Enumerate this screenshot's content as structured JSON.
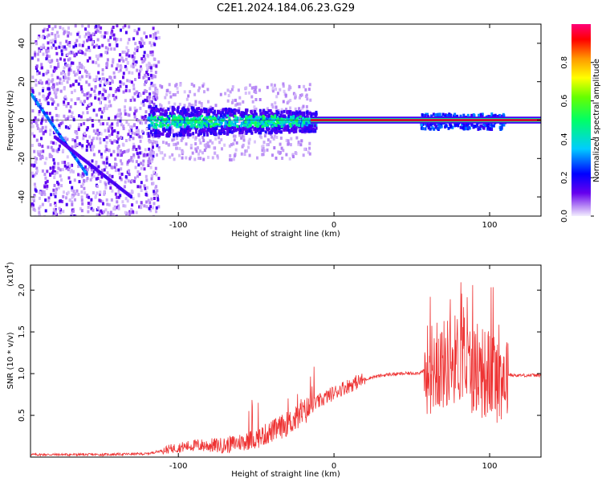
{
  "title": "C2E1.2024.184.06.23.G29",
  "colors": {
    "snr_line": "#ee3333",
    "axis": "#000000"
  },
  "colorbar": {
    "label": "Normalized spectral amplitude",
    "ticks": [
      "0.0",
      "0.2",
      "0.4",
      "0.6",
      "0.8"
    ],
    "tick_values": [
      0.0,
      0.2,
      0.4,
      0.6,
      0.8
    ],
    "range": [
      0,
      1
    ]
  },
  "chart_data": [
    {
      "type": "heatmap",
      "title": "",
      "xlabel": "Height of straight line (km)",
      "ylabel": "Frequency (Hz)",
      "xlim": [
        -195,
        133
      ],
      "ylim": [
        -50,
        50
      ],
      "x_ticks": [
        -100,
        0,
        100
      ],
      "x_tick_labels": [
        "-100",
        "0",
        "100"
      ],
      "y_ticks": [
        -40,
        -20,
        0,
        20,
        40
      ],
      "y_tick_labels": [
        "-40",
        "-20",
        "0",
        "20",
        "40"
      ],
      "regions": [
        {
          "x": [
            -195,
            -115
          ],
          "freq_spread": [
            -50,
            50
          ],
          "amplitude": 0.05
        },
        {
          "x": [
            -120,
            -15
          ],
          "freq_spread": [
            -8,
            8
          ],
          "amplitude": 0.25
        },
        {
          "x": [
            -15,
            133
          ],
          "freq_spread": [
            -1,
            1
          ],
          "amplitude": 0.95
        },
        {
          "x": [
            55,
            110
          ],
          "freq_spread": [
            -4,
            4
          ],
          "amplitude": 0.3
        }
      ]
    },
    {
      "type": "line",
      "title": "",
      "xlabel": "Height of straight line (km)",
      "ylabel": "SNR (10 * v/v)",
      "y_multiplier": "(x10^4)",
      "xlim": [
        -195,
        133
      ],
      "ylim": [
        0,
        2.3
      ],
      "x_ticks": [
        -100,
        0,
        100
      ],
      "x_tick_labels": [
        "-100",
        "0",
        "100"
      ],
      "y_ticks": [
        0.5,
        1.0,
        1.5,
        2.0
      ],
      "y_tick_labels": [
        "0.5",
        "1.0",
        "1.5",
        "2.0"
      ],
      "series": [
        {
          "x": [
            -195,
            -150,
            -120,
            -105,
            -90,
            -70,
            -50,
            -35,
            -25,
            -15,
            -5,
            5,
            15,
            25,
            35,
            45,
            55,
            60,
            65,
            70,
            75,
            80,
            85,
            90,
            95,
            100,
            105,
            110,
            115,
            133
          ],
          "y": [
            0.03,
            0.03,
            0.04,
            0.1,
            0.14,
            0.14,
            0.22,
            0.35,
            0.45,
            0.6,
            0.72,
            0.82,
            0.9,
            0.96,
            0.99,
            1.0,
            1.01,
            1.05,
            1.1,
            1.1,
            1.15,
            1.2,
            1.1,
            1.05,
            1.0,
            1.0,
            0.95,
            1.0,
            0.98,
            0.98
          ]
        }
      ]
    }
  ]
}
